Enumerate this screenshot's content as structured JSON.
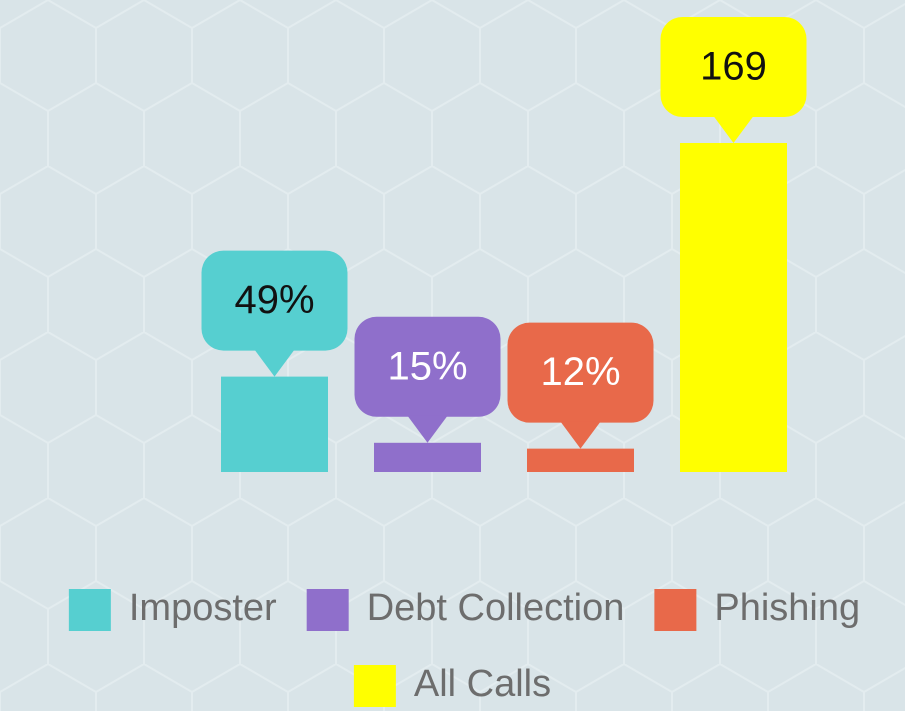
{
  "chart_data": {
    "type": "bar",
    "categories": [
      "Imposter",
      "Debt Collection",
      "Phishing",
      "All Calls"
    ],
    "values": [
      49,
      15,
      12,
      169
    ],
    "value_labels": [
      "49%",
      "15%",
      "12%",
      "169"
    ],
    "colors": [
      "#56cfd0",
      "#8f6fcb",
      "#e8694a",
      "#ffff00"
    ],
    "legend": "bottom"
  }
}
